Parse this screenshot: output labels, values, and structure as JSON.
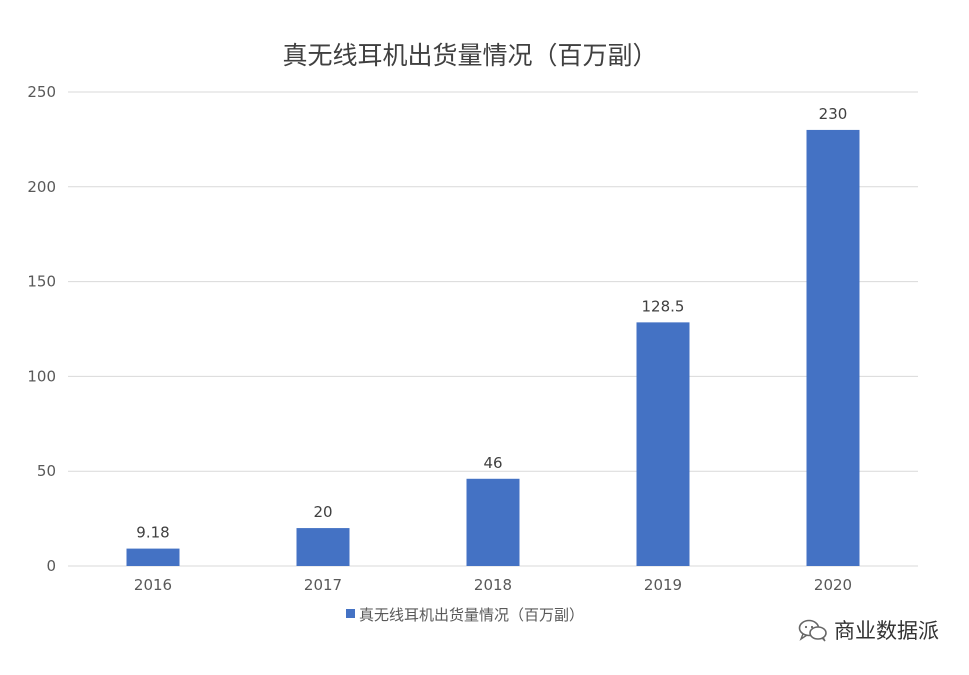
{
  "chart_data": {
    "type": "bar",
    "title": "真无线耳机出货量情况（百万副）",
    "categories": [
      "2016",
      "2017",
      "2018",
      "2019",
      "2020"
    ],
    "series": [
      {
        "name": "真无线耳机出货量情况（百万副）",
        "values": [
          9.18,
          20,
          46,
          128.5,
          230
        ],
        "labels": [
          "9.18",
          "20",
          "46",
          "128.5",
          "230"
        ]
      }
    ],
    "yticks": [
      0,
      50,
      100,
      150,
      200,
      250
    ],
    "ylim": [
      0,
      250
    ],
    "xlabel": "",
    "ylabel": "",
    "grid": true,
    "legend": "bottom",
    "colors": {
      "bar": "#4472C4",
      "grid": "#D9D9D9",
      "text": "#595959",
      "title": "#404040"
    }
  },
  "watermark": {
    "text": "商业数据派",
    "icon": "wechat-bubbles-icon"
  }
}
